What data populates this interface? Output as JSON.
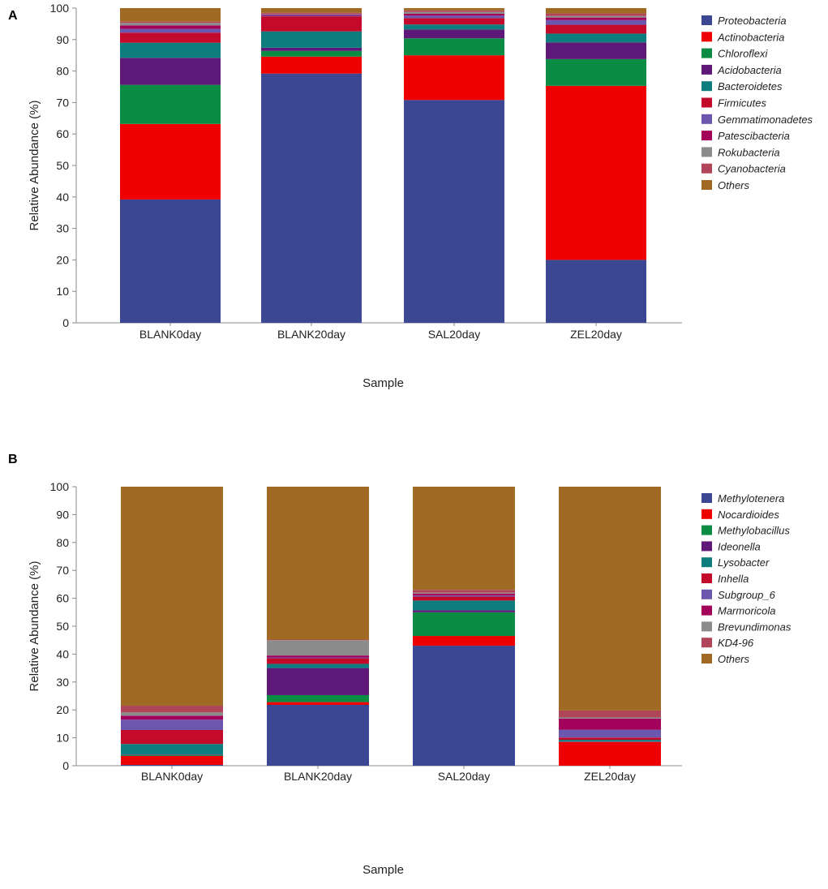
{
  "chart_data": [
    {
      "type": "bar",
      "stacked": true,
      "panel_label": "A",
      "title": "",
      "xlabel": "Sample",
      "ylabel": "Relative Abundance (%)",
      "ylim": [
        0,
        100
      ],
      "yticks": [
        0,
        10,
        20,
        30,
        40,
        50,
        60,
        70,
        80,
        90,
        100
      ],
      "legend_position": "right",
      "categories": [
        "BLANK0day",
        "BLANK20day",
        "SAL20day",
        "ZEL20day"
      ],
      "series": [
        {
          "name": "Proteobacteria",
          "color": "#3b4792",
          "values": [
            39.2,
            79.2,
            70.8,
            20.0
          ]
        },
        {
          "name": "Actinobacteria",
          "color": "#ee0000",
          "values": [
            24.0,
            5.4,
            14.2,
            55.3
          ]
        },
        {
          "name": "Chloroflexi",
          "color": "#0b8c44",
          "values": [
            12.4,
            1.8,
            5.4,
            8.5
          ]
        },
        {
          "name": "Acidobacteria",
          "color": "#5e1877",
          "values": [
            8.6,
            1.0,
            2.8,
            5.3
          ]
        },
        {
          "name": "Bacteroidetes",
          "color": "#0d7d7d",
          "values": [
            4.8,
            5.2,
            1.6,
            2.8
          ]
        },
        {
          "name": "Firmicutes",
          "color": "#c40a2a",
          "values": [
            3.2,
            4.8,
            2.0,
            2.8
          ]
        },
        {
          "name": "Gemmatimonadetes",
          "color": "#6c57ae",
          "values": [
            1.2,
            0.3,
            0.8,
            1.5
          ]
        },
        {
          "name": "Patescibacteria",
          "color": "#a3005a",
          "values": [
            1.1,
            0.3,
            0.6,
            0.8
          ]
        },
        {
          "name": "Rokubacteria",
          "color": "#8c8c8c",
          "values": [
            0.8,
            0.2,
            0.6,
            0.5
          ]
        },
        {
          "name": "Cyanobacteria",
          "color": "#b04459",
          "values": [
            0.4,
            0.3,
            0.5,
            0.8
          ]
        },
        {
          "name": "Others",
          "color": "#a06a24",
          "values": [
            4.3,
            1.5,
            0.7,
            1.7
          ]
        }
      ]
    },
    {
      "type": "bar",
      "stacked": true,
      "panel_label": "B",
      "title": "",
      "xlabel": "Sample",
      "ylabel": "Relative Abundance (%)",
      "ylim": [
        0,
        100
      ],
      "yticks": [
        0,
        10,
        20,
        30,
        40,
        50,
        60,
        70,
        80,
        90,
        100
      ],
      "legend_position": "right",
      "categories": [
        "BLANK0day",
        "BLANK20day",
        "SAL20day",
        "ZEL20day"
      ],
      "series": [
        {
          "name": "Methylotenera",
          "color": "#3b4792",
          "values": [
            0.3,
            21.8,
            43.0,
            0.0
          ]
        },
        {
          "name": "Nocardioides",
          "color": "#ee0000",
          "values": [
            3.2,
            1.0,
            3.5,
            8.5
          ]
        },
        {
          "name": "Methylobacillus",
          "color": "#0b8c44",
          "values": [
            0.3,
            2.5,
            8.5,
            0.1
          ]
        },
        {
          "name": "Ideonella",
          "color": "#5e1877",
          "values": [
            0.2,
            9.7,
            0.7,
            0.2
          ]
        },
        {
          "name": "Lysobacter",
          "color": "#0d7d7d",
          "values": [
            3.8,
            1.5,
            3.5,
            0.5
          ]
        },
        {
          "name": "Inhella",
          "color": "#c40a2a",
          "values": [
            5.0,
            2.0,
            1.4,
            0.8
          ]
        },
        {
          "name": "Subgroup_6",
          "color": "#6c57ae",
          "values": [
            3.7,
            0.3,
            0.4,
            2.8
          ]
        },
        {
          "name": "Marmoricola",
          "color": "#a3005a",
          "values": [
            1.4,
            0.7,
            0.7,
            4.0
          ]
        },
        {
          "name": "Brevundimonas",
          "color": "#8c8c8c",
          "values": [
            1.2,
            5.5,
            0.3,
            0.4
          ]
        },
        {
          "name": "KD4-96",
          "color": "#b04459",
          "values": [
            2.4,
            0.2,
            1.0,
            2.5
          ]
        },
        {
          "name": "Others",
          "color": "#a06a24",
          "values": [
            78.5,
            54.8,
            37.0,
            80.2
          ]
        }
      ]
    }
  ]
}
